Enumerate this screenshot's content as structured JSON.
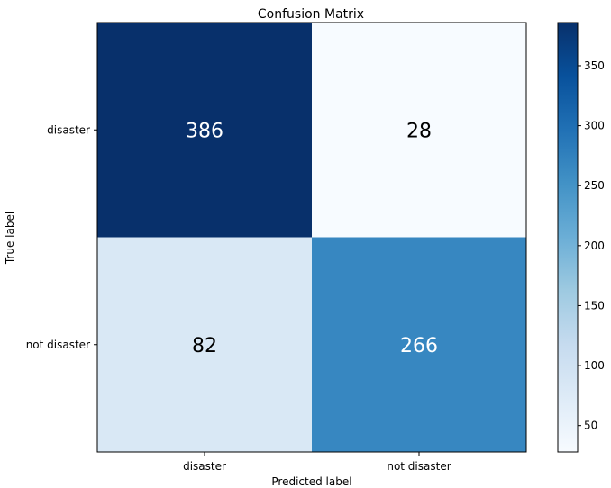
{
  "chart_data": {
    "type": "heatmap",
    "title": "Confusion Matrix",
    "xlabel": "Predicted label",
    "ylabel": "True label",
    "x_categories": [
      "disaster",
      "not disaster"
    ],
    "y_categories": [
      "disaster",
      "not disaster"
    ],
    "values": [
      [
        386,
        28
      ],
      [
        82,
        266
      ]
    ],
    "colormap": "Blues",
    "color_range": [
      28,
      386
    ],
    "colorbar_ticks": [
      50,
      100,
      150,
      200,
      250,
      300,
      350
    ]
  }
}
